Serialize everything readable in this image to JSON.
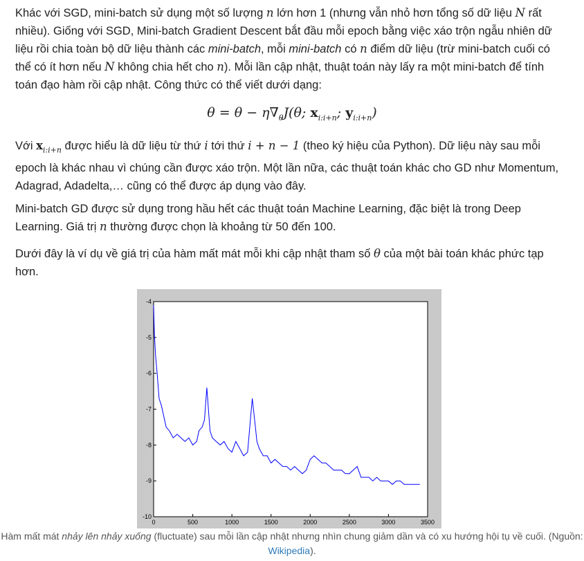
{
  "paragraph1": {
    "t1": "Khác với SGD, mini-batch sử dụng một số lượng ",
    "m1": "n",
    "t2": " lớn hơn 1 (nhưng vẫn nhỏ hơn tổng số dữ liệu ",
    "m2": "N",
    "t3": " rất nhiều). Giống với SGD, Mini-batch Gradient Descent bắt đầu mỗi epoch bằng việc xáo trộn ngẫu nhiên dữ liệu rồi chia toàn bộ dữ liệu thành các ",
    "em1": "mini-batch",
    "t4": ", mỗi ",
    "em2": "mini-batch",
    "t5": " có ",
    "m3": "n",
    "t6": " điểm dữ liệu (trừ mini-batch cuối có thể có ít hơn nếu ",
    "m4": "N",
    "t7": " không chia hết cho ",
    "m5": "n",
    "t8": "). Mỗi lần cập nhật, thuật toán này lấy ra một mini-batch để tính toán đạo hàm rồi cập nhật. Công thức có thể viết dưới dạng:"
  },
  "equation": {
    "lhs": "θ = θ − η∇",
    "sub1": "θ",
    "mid": "J(θ; ",
    "x": "x",
    "sub2": "i:i+n",
    "semi": "; ",
    "y": "y",
    "sub3": "i:i+n",
    "end": ")"
  },
  "paragraph2": {
    "t1": "Với ",
    "x": "x",
    "sub": "i:i+n",
    "t2": " được hiểu là dữ liệu từ thứ ",
    "m1": "i",
    "t3": " tới thứ ",
    "m2": "i + n − 1",
    "t4": " (theo ký hiệu của Python). Dữ liệu này sau mỗi epoch là khác nhau vì chúng cần được xáo trộn. Một lần nữa, các thuật toán khác cho GD như Momentum, Adagrad, Adadelta,… cũng có thể được áp dụng vào đây."
  },
  "paragraph3": {
    "t1": "Mini-batch GD được sử dụng trong hầu hết các thuật toán Machine Learning, đặc biệt là trong Deep Learning. Giá trị ",
    "m1": "n",
    "t2": " thường được chọn là khoảng từ 50 đến 100."
  },
  "paragraph4": {
    "t1": "Dưới đây là ví dụ về giá trị của hàm mất mát mỗi khi cập nhật tham số ",
    "m1": "θ",
    "t2": " của một bài toán khác phức tạp hơn."
  },
  "caption": {
    "t1": "Hàm mất mát ",
    "em": "nhảy lên nhảy xuống",
    "t2": " (fluctuate) sau mỗi lần cập nhật nhưng nhìn chung giảm dần và có xu hướng hội tụ về cuối. (Nguồn: ",
    "link": "Wikipedia",
    "t3": ")."
  },
  "chart_data": {
    "type": "line",
    "color": "#0000ff",
    "xlim": [
      0,
      3500
    ],
    "ylim": [
      -10,
      -4
    ],
    "xticks": [
      "0",
      "500",
      "1000",
      "1500",
      "2000",
      "2500",
      "3000",
      "3500"
    ],
    "yticks": [
      "-4",
      "-5",
      "-6",
      "-7",
      "-8",
      "-9",
      "-10"
    ],
    "series": [
      {
        "x": [
          0,
          10,
          25,
          45,
          70,
          100,
          130,
          160,
          200,
          250,
          300,
          350,
          400,
          450,
          500,
          550,
          580,
          620,
          650,
          680,
          700,
          720,
          750,
          800,
          850,
          900,
          950,
          1000,
          1050,
          1100,
          1150,
          1200,
          1260,
          1290,
          1320,
          1350,
          1400,
          1450,
          1500,
          1550,
          1600,
          1650,
          1700,
          1750,
          1800,
          1850,
          1900,
          1950,
          2000,
          2050,
          2100,
          2150,
          2200,
          2250,
          2300,
          2350,
          2400,
          2450,
          2500,
          2550,
          2600,
          2650,
          2700,
          2750,
          2800,
          2850,
          2900,
          2950,
          3000,
          3050,
          3100,
          3150,
          3200,
          3250,
          3300,
          3350,
          3400
        ],
        "y": [
          -4.1,
          -4.9,
          -5.5,
          -6.0,
          -6.7,
          -6.9,
          -7.2,
          -7.5,
          -7.6,
          -7.8,
          -7.7,
          -7.8,
          -7.9,
          -7.8,
          -8.0,
          -7.9,
          -7.6,
          -7.5,
          -7.3,
          -6.4,
          -7.0,
          -7.6,
          -7.8,
          -7.9,
          -8.0,
          -7.9,
          -8.1,
          -8.2,
          -7.9,
          -8.1,
          -8.3,
          -8.2,
          -6.7,
          -7.3,
          -7.9,
          -8.1,
          -8.3,
          -8.3,
          -8.5,
          -8.4,
          -8.5,
          -8.6,
          -8.6,
          -8.7,
          -8.6,
          -8.7,
          -8.8,
          -8.7,
          -8.4,
          -8.3,
          -8.4,
          -8.5,
          -8.5,
          -8.6,
          -8.7,
          -8.7,
          -8.7,
          -8.8,
          -8.8,
          -8.7,
          -8.6,
          -8.9,
          -8.9,
          -8.9,
          -9.0,
          -8.9,
          -9.0,
          -9.0,
          -9.0,
          -9.1,
          -9.0,
          -9.0,
          -9.1,
          -9.1,
          -9.1,
          -9.1,
          -9.1
        ]
      }
    ]
  }
}
